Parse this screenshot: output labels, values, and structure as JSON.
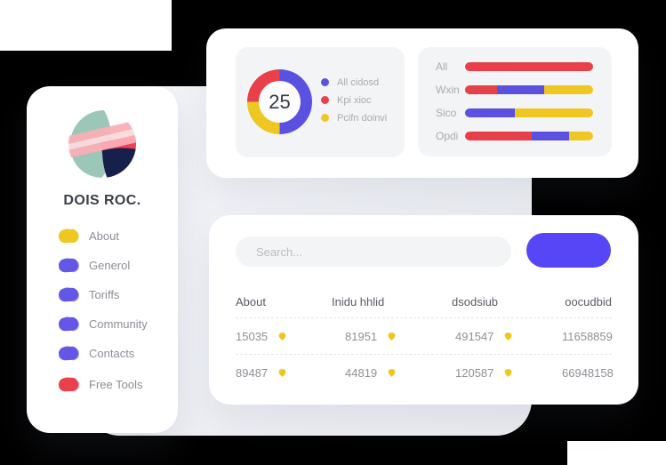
{
  "page": {
    "background": "#000000"
  },
  "colors": {
    "chart_red": "#e8404b",
    "chart_violet": "#5b51e0",
    "chart_yellow": "#efc723",
    "button_blue": "#5746f5",
    "menu_purple": "#6457e8",
    "menu_yellow": "#efc723",
    "menu_red": "#e8414c",
    "table_icon_yellow": "#f2c51d"
  },
  "sidebar": {
    "brand": "DOIS ROC.",
    "items": [
      {
        "label": "About",
        "color": "#efc723",
        "gap_before": false
      },
      {
        "label": "Generol",
        "color": "#6457e8",
        "gap_before": false
      },
      {
        "label": "Toriffs",
        "color": "#6457e8",
        "gap_before": false
      },
      {
        "label": "Community",
        "color": "#6457e8",
        "gap_before": false
      },
      {
        "label": "Contacts",
        "color": "#6457e8",
        "gap_before": false
      },
      {
        "label": "Free Tools",
        "color": "#e8414c",
        "gap_before": true
      }
    ]
  },
  "chart_data": [
    {
      "type": "pie",
      "donut": true,
      "center_label": "25",
      "labels": [
        "All cidosd",
        "Kpi xioc",
        "Pcifn doinvi"
      ],
      "values": [
        50,
        25,
        25
      ],
      "colors": [
        "#5b51e0",
        "#e8404b",
        "#efc723"
      ],
      "legend_position": "right",
      "render_order_clockwise_from_top": [
        0,
        2,
        1
      ]
    },
    {
      "type": "bar",
      "orientation": "horizontal",
      "stacked": true,
      "value_unit": "percent",
      "categories": [
        "All",
        "Wxin",
        "Sico",
        "Opdi"
      ],
      "series": [
        {
          "name": "red",
          "color": "#e8404b",
          "values": [
            100,
            25,
            0,
            52
          ]
        },
        {
          "name": "violet",
          "color": "#5b51e0",
          "values": [
            0,
            37,
            39,
            29
          ]
        },
        {
          "name": "yellow",
          "color": "#efc723",
          "values": [
            0,
            38,
            61,
            19
          ]
        }
      ]
    }
  ],
  "bottom_card": {
    "search_placeholder": "Search...",
    "button_label": "",
    "table": {
      "headers": [
        "About",
        "Inidu hhlid",
        "dsodsiub",
        "oocudbid"
      ],
      "rows": [
        [
          {
            "value": "15035",
            "icon": true
          },
          {
            "value": "81951",
            "icon": true
          },
          {
            "value": "491547",
            "icon": true
          },
          {
            "value": "11658859",
            "icon": false
          }
        ],
        [
          {
            "value": "89487",
            "icon": true
          },
          {
            "value": "44819",
            "icon": true
          },
          {
            "value": "120587",
            "icon": true
          },
          {
            "value": "66948158",
            "icon": false
          }
        ]
      ],
      "row_icon": "pick-icon"
    }
  }
}
